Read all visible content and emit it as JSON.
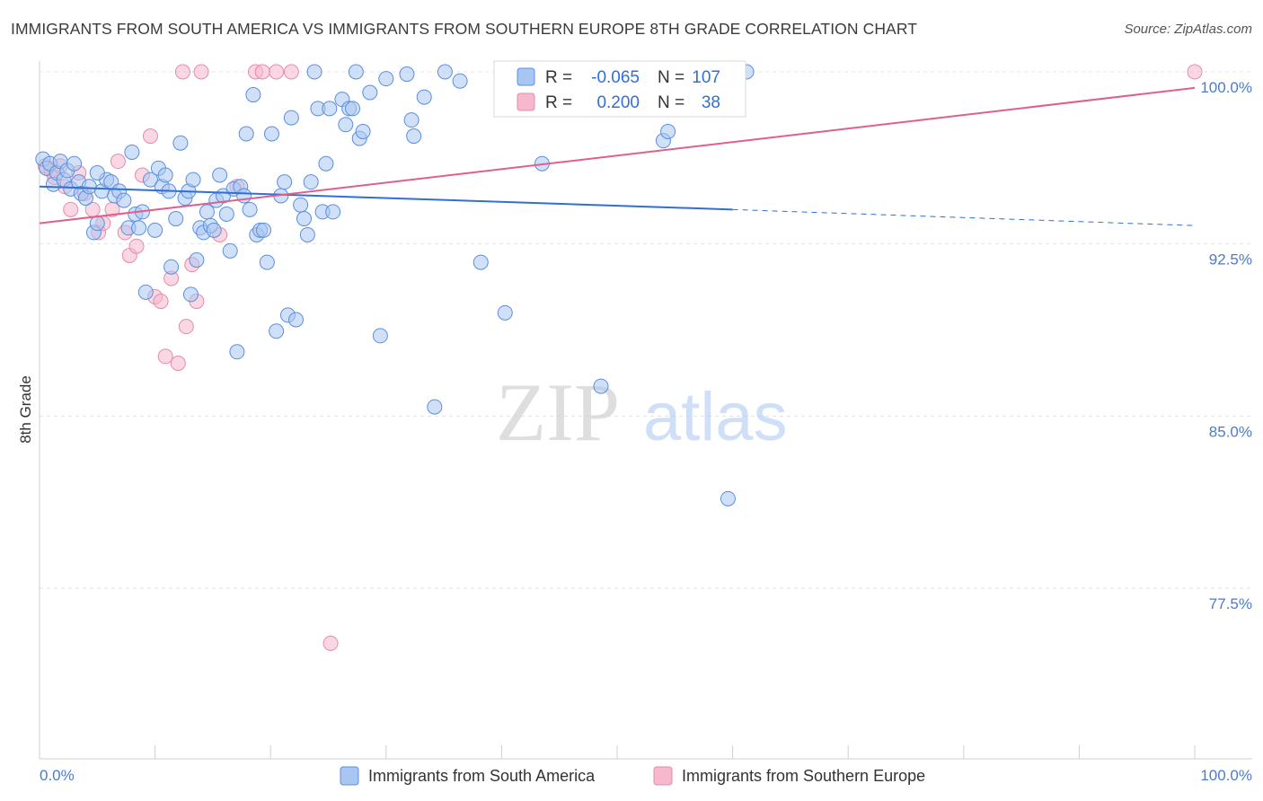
{
  "title": "IMMIGRANTS FROM SOUTH AMERICA VS IMMIGRANTS FROM SOUTHERN EUROPE 8TH GRADE CORRELATION CHART",
  "source": "Source: ZipAtlas.com",
  "watermark": {
    "zip": "ZIP",
    "atlas": "atlas"
  },
  "colors": {
    "blue_fill": "#a9c6f2",
    "blue_stroke": "#5b8fdc",
    "blue_line": "#2f6fd6",
    "pink_fill": "#f5b8cc",
    "pink_stroke": "#e88aa8",
    "pink_line": "#e0608c",
    "tick_text": "#4a7bd0"
  },
  "legend": {
    "rows": [
      {
        "r_label": "R = ",
        "r_value": "-0.065",
        "n_label": "N = ",
        "n_value": "107"
      },
      {
        "r_label": "R = ",
        "r_value": "0.200",
        "n_label": "N = ",
        "n_value": "38"
      }
    ]
  },
  "chart_data": {
    "type": "scatter",
    "xlabel": "",
    "ylabel": "8th Grade",
    "xlim": [
      0,
      100
    ],
    "ylim": [
      70,
      101
    ],
    "x_tick_labels": [
      "0.0%",
      "100.0%"
    ],
    "y_ticks": [
      77.5,
      85.0,
      92.5,
      100.0
    ],
    "y_tick_labels": [
      "77.5%",
      "85.0%",
      "92.5%",
      "100.0%"
    ],
    "grid": "horizontal dashed",
    "legend_position": "top-center",
    "series": [
      {
        "name": "Immigrants from South America",
        "trend": {
          "x0": 0,
          "y0": 95.0,
          "x1": 60,
          "y1": 94.0,
          "dash_to_x": 100,
          "dash_to_y": 93.3
        },
        "points": [
          [
            0.3,
            96.2
          ],
          [
            0.6,
            95.8
          ],
          [
            0.9,
            96.0
          ],
          [
            1.2,
            95.1
          ],
          [
            1.5,
            95.6
          ],
          [
            1.8,
            96.1
          ],
          [
            2.1,
            95.3
          ],
          [
            2.4,
            95.7
          ],
          [
            2.7,
            94.9
          ],
          [
            3.0,
            96.0
          ],
          [
            3.4,
            95.2
          ],
          [
            3.6,
            94.7
          ],
          [
            4.0,
            94.5
          ],
          [
            4.3,
            95.0
          ],
          [
            4.7,
            93.0
          ],
          [
            5.0,
            93.4
          ],
          [
            5.4,
            94.8
          ],
          [
            5.8,
            95.3
          ],
          [
            6.2,
            95.2
          ],
          [
            6.5,
            94.6
          ],
          [
            6.9,
            94.8
          ],
          [
            7.3,
            94.4
          ],
          [
            7.7,
            93.2
          ],
          [
            8.0,
            96.5
          ],
          [
            8.3,
            93.8
          ],
          [
            8.6,
            93.2
          ],
          [
            8.9,
            93.9
          ],
          [
            9.2,
            90.4
          ],
          [
            9.6,
            95.3
          ],
          [
            10.0,
            93.1
          ],
          [
            10.3,
            95.8
          ],
          [
            10.6,
            95.0
          ],
          [
            10.9,
            95.5
          ],
          [
            11.2,
            94.8
          ],
          [
            11.4,
            91.5
          ],
          [
            11.8,
            93.6
          ],
          [
            12.2,
            96.9
          ],
          [
            12.6,
            94.5
          ],
          [
            12.9,
            94.8
          ],
          [
            13.1,
            90.3
          ],
          [
            13.3,
            95.3
          ],
          [
            13.6,
            91.8
          ],
          [
            13.9,
            93.2
          ],
          [
            14.2,
            93.0
          ],
          [
            14.5,
            93.9
          ],
          [
            14.8,
            93.3
          ],
          [
            15.1,
            93.1
          ],
          [
            15.3,
            94.4
          ],
          [
            15.6,
            95.5
          ],
          [
            15.9,
            94.6
          ],
          [
            16.2,
            93.8
          ],
          [
            16.5,
            92.2
          ],
          [
            16.8,
            94.9
          ],
          [
            17.1,
            87.8
          ],
          [
            17.4,
            95.0
          ],
          [
            17.7,
            94.6
          ],
          [
            17.9,
            97.3
          ],
          [
            18.2,
            94.0
          ],
          [
            18.5,
            99.0
          ],
          [
            18.8,
            92.9
          ],
          [
            19.1,
            93.1
          ],
          [
            19.4,
            93.1
          ],
          [
            19.7,
            91.7
          ],
          [
            20.1,
            97.3
          ],
          [
            20.5,
            88.7
          ],
          [
            20.9,
            94.6
          ],
          [
            21.2,
            95.2
          ],
          [
            21.5,
            89.4
          ],
          [
            21.8,
            98.0
          ],
          [
            22.2,
            89.2
          ],
          [
            22.6,
            94.2
          ],
          [
            22.9,
            93.6
          ],
          [
            23.2,
            92.9
          ],
          [
            23.5,
            95.2
          ],
          [
            23.8,
            100.0
          ],
          [
            24.1,
            98.4
          ],
          [
            24.5,
            93.9
          ],
          [
            24.8,
            96.0
          ],
          [
            25.1,
            98.4
          ],
          [
            25.4,
            93.9
          ],
          [
            26.2,
            98.8
          ],
          [
            26.5,
            97.7
          ],
          [
            26.8,
            98.4
          ],
          [
            27.1,
            98.4
          ],
          [
            27.4,
            100.0
          ],
          [
            27.7,
            97.1
          ],
          [
            28.0,
            97.4
          ],
          [
            28.6,
            99.1
          ],
          [
            29.5,
            88.5
          ],
          [
            30.0,
            99.7
          ],
          [
            31.8,
            99.9
          ],
          [
            32.2,
            97.9
          ],
          [
            32.4,
            97.2
          ],
          [
            33.3,
            98.9
          ],
          [
            34.2,
            85.4
          ],
          [
            35.1,
            100.0
          ],
          [
            36.4,
            99.6
          ],
          [
            38.2,
            91.7
          ],
          [
            40.3,
            89.5
          ],
          [
            43.5,
            96.0
          ],
          [
            48.6,
            86.3
          ],
          [
            52.8,
            100.0
          ],
          [
            54.0,
            97.0
          ],
          [
            54.4,
            97.4
          ],
          [
            59.6,
            81.4
          ],
          [
            61.2,
            100.0
          ],
          [
            5.0,
            95.6
          ]
        ]
      },
      {
        "name": "Immigrants from Southern Europe",
        "trend": {
          "x0": 0,
          "y0": 93.4,
          "x1": 100,
          "y1": 99.3
        },
        "points": [
          [
            0.5,
            95.9
          ],
          [
            1.0,
            95.7
          ],
          [
            1.3,
            95.4
          ],
          [
            1.8,
            95.9
          ],
          [
            2.2,
            95.0
          ],
          [
            2.7,
            94.0
          ],
          [
            3.4,
            95.6
          ],
          [
            3.9,
            94.7
          ],
          [
            4.6,
            94.0
          ],
          [
            5.1,
            93.0
          ],
          [
            5.5,
            93.4
          ],
          [
            6.3,
            94.0
          ],
          [
            6.8,
            96.1
          ],
          [
            7.4,
            93.0
          ],
          [
            7.8,
            92.0
          ],
          [
            8.4,
            92.4
          ],
          [
            8.9,
            95.5
          ],
          [
            9.6,
            97.2
          ],
          [
            10.0,
            90.2
          ],
          [
            10.5,
            90.0
          ],
          [
            10.9,
            87.6
          ],
          [
            11.4,
            91.0
          ],
          [
            12.0,
            87.3
          ],
          [
            12.4,
            100.0
          ],
          [
            12.7,
            88.9
          ],
          [
            13.2,
            91.6
          ],
          [
            13.6,
            90.0
          ],
          [
            14.0,
            100.0
          ],
          [
            15.6,
            92.9
          ],
          [
            17.1,
            95.0
          ],
          [
            18.7,
            100.0
          ],
          [
            19.3,
            100.0
          ],
          [
            20.5,
            100.0
          ],
          [
            21.8,
            100.0
          ],
          [
            25.2,
            75.1
          ],
          [
            43.9,
            100.0
          ],
          [
            44.8,
            100.0
          ],
          [
            100.0,
            100.0
          ]
        ]
      }
    ]
  },
  "bottom_legend": [
    "Immigrants from South America",
    "Immigrants from Southern Europe"
  ]
}
